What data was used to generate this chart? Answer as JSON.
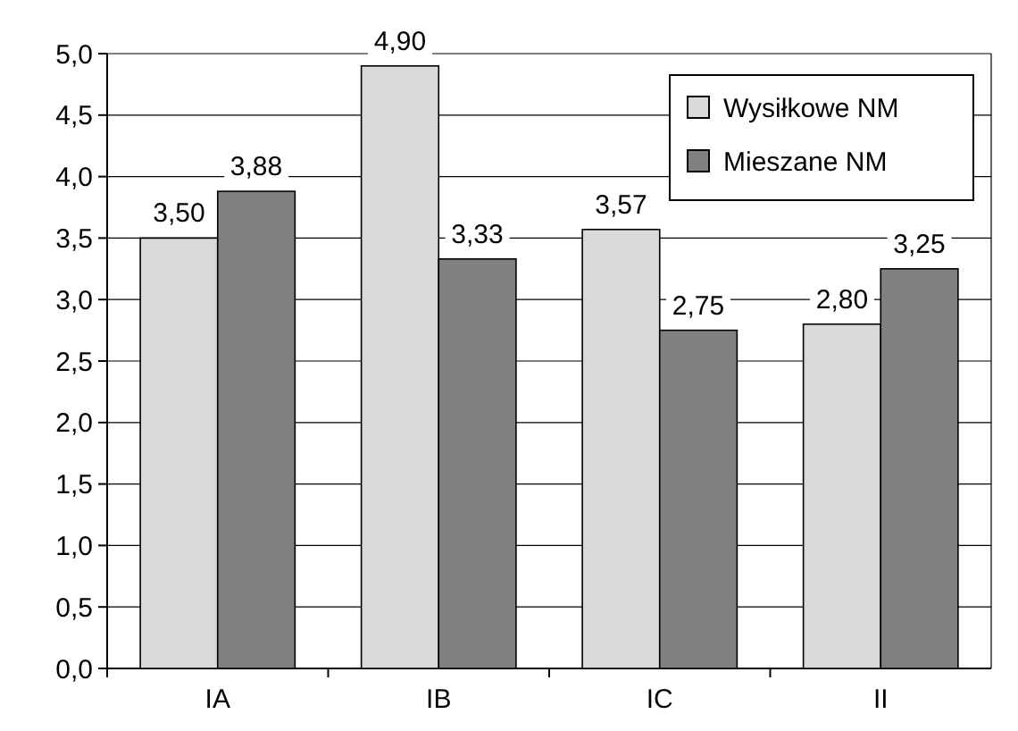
{
  "chart_data": {
    "type": "bar",
    "categories": [
      "IA",
      "IB",
      "IC",
      "II"
    ],
    "series": [
      {
        "name": "Wysiłkowe NM",
        "color": "#d9d9d9",
        "values": [
          3.5,
          4.9,
          3.57,
          2.8
        ],
        "value_labels": [
          "3,50",
          "4,90",
          "3,57",
          "2,80"
        ]
      },
      {
        "name": "Mieszane NM",
        "color": "#808080",
        "values": [
          3.88,
          3.33,
          2.75,
          3.25
        ],
        "value_labels": [
          "3,88",
          "3,33",
          "2,75",
          "3,25"
        ]
      }
    ],
    "ylim": [
      0,
      5
    ],
    "yticks": [
      {
        "value": 0,
        "label": "0,0"
      },
      {
        "value": 0.5,
        "label": "0,5"
      },
      {
        "value": 1,
        "label": "1,0"
      },
      {
        "value": 1.5,
        "label": "1,5"
      },
      {
        "value": 2,
        "label": "2,0"
      },
      {
        "value": 2.5,
        "label": "2,5"
      },
      {
        "value": 3,
        "label": "3,0"
      },
      {
        "value": 3.5,
        "label": "3,5"
      },
      {
        "value": 4,
        "label": "4,0"
      },
      {
        "value": 4.5,
        "label": "4,5"
      },
      {
        "value": 5,
        "label": "5,0"
      }
    ],
    "grid": "y",
    "legend": "top right"
  }
}
